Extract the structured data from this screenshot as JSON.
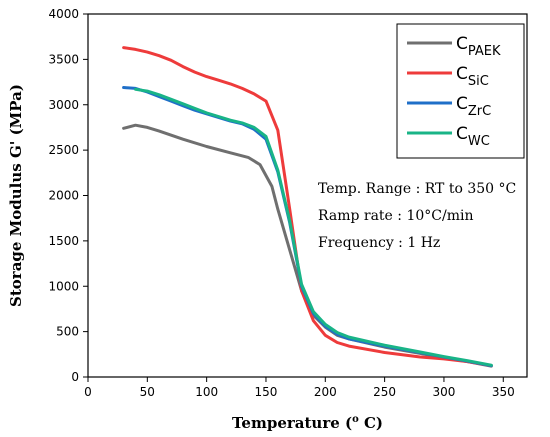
{
  "chart_data": {
    "type": "line",
    "xlabel": "Temperature (",
    "xlabel_sup": "o",
    "xlabel_end": " C)",
    "ylabel": "Storage Modulus G' (MPa)",
    "xlim": [
      0,
      370
    ],
    "ylim": [
      0,
      4000
    ],
    "xticks": [
      0,
      50,
      100,
      150,
      200,
      250,
      300,
      350
    ],
    "yticks": [
      0,
      500,
      1000,
      1500,
      2000,
      2500,
      3000,
      3500,
      4000
    ],
    "legend_position": "top-right",
    "series": [
      {
        "name": "C",
        "sub": "PAEK",
        "color": "#6f6f6f",
        "points": [
          [
            30,
            2740
          ],
          [
            40,
            2775
          ],
          [
            50,
            2750
          ],
          [
            60,
            2710
          ],
          [
            80,
            2620
          ],
          [
            100,
            2540
          ],
          [
            120,
            2470
          ],
          [
            135,
            2420
          ],
          [
            145,
            2340
          ],
          [
            155,
            2100
          ],
          [
            160,
            1850
          ],
          [
            170,
            1400
          ],
          [
            180,
            950
          ],
          [
            190,
            680
          ],
          [
            200,
            550
          ],
          [
            210,
            460
          ],
          [
            220,
            420
          ],
          [
            250,
            330
          ],
          [
            280,
            260
          ],
          [
            300,
            210
          ],
          [
            320,
            170
          ],
          [
            340,
            120
          ]
        ]
      },
      {
        "name": "C",
        "sub": "SiC",
        "color": "#ee3b3b",
        "points": [
          [
            30,
            3630
          ],
          [
            40,
            3610
          ],
          [
            50,
            3580
          ],
          [
            60,
            3540
          ],
          [
            70,
            3490
          ],
          [
            80,
            3420
          ],
          [
            90,
            3360
          ],
          [
            100,
            3310
          ],
          [
            110,
            3270
          ],
          [
            120,
            3230
          ],
          [
            130,
            3180
          ],
          [
            140,
            3120
          ],
          [
            150,
            3040
          ],
          [
            160,
            2720
          ],
          [
            170,
            1850
          ],
          [
            180,
            950
          ],
          [
            190,
            620
          ],
          [
            200,
            460
          ],
          [
            210,
            380
          ],
          [
            220,
            340
          ],
          [
            250,
            270
          ],
          [
            280,
            220
          ],
          [
            300,
            200
          ],
          [
            320,
            170
          ],
          [
            340,
            125
          ]
        ]
      },
      {
        "name": "C",
        "sub": "ZrC",
        "color": "#1f6fc8",
        "points": [
          [
            30,
            3190
          ],
          [
            40,
            3180
          ],
          [
            50,
            3140
          ],
          [
            60,
            3090
          ],
          [
            70,
            3040
          ],
          [
            80,
            2990
          ],
          [
            90,
            2940
          ],
          [
            100,
            2900
          ],
          [
            110,
            2860
          ],
          [
            120,
            2820
          ],
          [
            130,
            2790
          ],
          [
            140,
            2730
          ],
          [
            150,
            2620
          ],
          [
            160,
            2260
          ],
          [
            170,
            1700
          ],
          [
            180,
            1000
          ],
          [
            190,
            700
          ],
          [
            200,
            560
          ],
          [
            210,
            470
          ],
          [
            220,
            420
          ],
          [
            250,
            340
          ],
          [
            280,
            270
          ],
          [
            300,
            220
          ],
          [
            320,
            175
          ],
          [
            340,
            125
          ]
        ]
      },
      {
        "name": "C",
        "sub": "WC",
        "color": "#19b487",
        "points": [
          [
            40,
            3170
          ],
          [
            50,
            3150
          ],
          [
            60,
            3110
          ],
          [
            70,
            3060
          ],
          [
            80,
            3010
          ],
          [
            90,
            2960
          ],
          [
            100,
            2910
          ],
          [
            110,
            2870
          ],
          [
            120,
            2830
          ],
          [
            130,
            2800
          ],
          [
            140,
            2750
          ],
          [
            150,
            2650
          ],
          [
            160,
            2280
          ],
          [
            170,
            1720
          ],
          [
            180,
            1020
          ],
          [
            190,
            720
          ],
          [
            200,
            580
          ],
          [
            210,
            490
          ],
          [
            220,
            440
          ],
          [
            250,
            350
          ],
          [
            280,
            275
          ],
          [
            300,
            225
          ],
          [
            320,
            180
          ],
          [
            340,
            130
          ]
        ]
      }
    ],
    "annotations": [
      "Temp. Range : RT to 350 °C",
      "Ramp rate : 10°C/min",
      "Frequency : 1 Hz"
    ]
  }
}
